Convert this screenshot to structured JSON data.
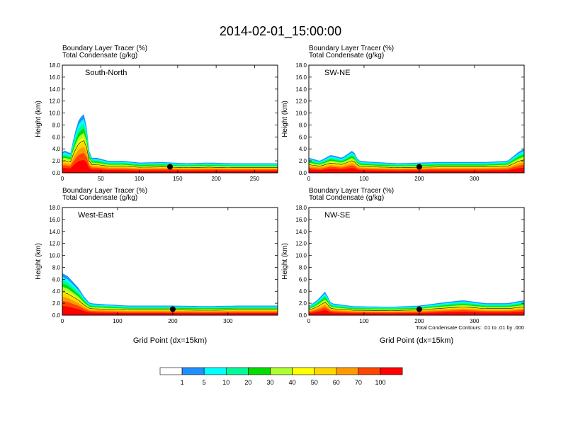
{
  "main_title": "2014-02-01_15:00:00",
  "chart_data": [
    {
      "type": "heatmap",
      "panel": "top-left",
      "title": "South-North",
      "subtitle_line1": "Boundary Layer Tracer   (%)",
      "subtitle_line2": "Total Condensate   (g/kg)",
      "xlabel": "",
      "ylabel": "Height (km)",
      "xlim": [
        0,
        280
      ],
      "ylim": [
        0,
        18
      ],
      "xticks": [
        0,
        50,
        100,
        150,
        200,
        250
      ],
      "xtick_labels": [
        "0",
        "50",
        "100",
        "150",
        "200",
        "250"
      ],
      "yticks": [
        0,
        2,
        4,
        6,
        8,
        10,
        12,
        14,
        16,
        18
      ],
      "ytick_labels": [
        "0.0",
        "2.0",
        "4.0",
        "6.0",
        "8.0",
        "10.0",
        "12.0",
        "14.0",
        "16.0",
        "18.0"
      ],
      "marker": {
        "x": 140,
        "y": 1.0
      },
      "bl_top_km": [
        [
          0,
          3.5
        ],
        [
          5,
          3.8
        ],
        [
          10,
          3.0
        ],
        [
          15,
          6.0
        ],
        [
          20,
          8.5
        ],
        [
          25,
          9.5
        ],
        [
          30,
          10.0
        ],
        [
          34,
          4.0
        ],
        [
          38,
          2.5
        ],
        [
          45,
          2.5
        ],
        [
          60,
          2.0
        ],
        [
          80,
          2.0
        ],
        [
          100,
          1.7
        ],
        [
          130,
          1.8
        ],
        [
          160,
          1.6
        ],
        [
          190,
          1.7
        ],
        [
          220,
          1.6
        ],
        [
          250,
          1.6
        ],
        [
          280,
          1.6
        ]
      ]
    },
    {
      "type": "heatmap",
      "panel": "top-right",
      "title": "SW-NE",
      "subtitle_line1": "Boundary Layer Tracer   (%)",
      "subtitle_line2": "Total Condensate   (g/kg)",
      "xlabel": "",
      "ylabel": "Height (km)",
      "xlim": [
        0,
        390
      ],
      "ylim": [
        0,
        18
      ],
      "xticks": [
        0,
        100,
        200,
        300
      ],
      "xtick_labels": [
        "0",
        "100",
        "200",
        "300"
      ],
      "yticks": [
        0,
        2,
        4,
        6,
        8,
        10,
        12,
        14,
        16,
        18
      ],
      "ytick_labels": [
        "0.0",
        "2.0",
        "4.0",
        "6.0",
        "8.0",
        "10.0",
        "12.0",
        "14.0",
        "16.0",
        "18.0"
      ],
      "marker": {
        "x": 200,
        "y": 1.0
      },
      "bl_top_km": [
        [
          0,
          2.5
        ],
        [
          20,
          2.0
        ],
        [
          40,
          3.0
        ],
        [
          60,
          2.5
        ],
        [
          80,
          3.8
        ],
        [
          90,
          2.0
        ],
        [
          120,
          1.8
        ],
        [
          160,
          1.6
        ],
        [
          200,
          1.7
        ],
        [
          240,
          1.8
        ],
        [
          280,
          1.8
        ],
        [
          320,
          1.8
        ],
        [
          360,
          2.0
        ],
        [
          380,
          3.5
        ],
        [
          390,
          4.0
        ]
      ]
    },
    {
      "type": "heatmap",
      "panel": "bottom-left",
      "title": "West-East",
      "subtitle_line1": "Boundary Layer Tracer   (%)",
      "subtitle_line2": "Total Condensate   (g/kg)",
      "xlabel": "Grid Point (dx=15km)",
      "ylabel": "Height (km)",
      "xlim": [
        0,
        390
      ],
      "ylim": [
        0,
        18
      ],
      "xticks": [
        0,
        100,
        200,
        300
      ],
      "xtick_labels": [
        "0",
        "100",
        "200",
        "300"
      ],
      "yticks": [
        0,
        2,
        4,
        6,
        8,
        10,
        12,
        14,
        16,
        18
      ],
      "ytick_labels": [
        "0.0",
        "2.0",
        "4.0",
        "6.0",
        "8.0",
        "10.0",
        "12.0",
        "14.0",
        "16.0",
        "18.0"
      ],
      "marker": {
        "x": 200,
        "y": 1.0
      },
      "bl_top_km": [
        [
          0,
          7.0
        ],
        [
          10,
          6.5
        ],
        [
          20,
          5.5
        ],
        [
          30,
          4.5
        ],
        [
          40,
          3.0
        ],
        [
          50,
          2.0
        ],
        [
          80,
          1.8
        ],
        [
          120,
          1.6
        ],
        [
          200,
          1.6
        ],
        [
          260,
          1.5
        ],
        [
          320,
          1.6
        ],
        [
          390,
          1.6
        ]
      ]
    },
    {
      "type": "heatmap",
      "panel": "bottom-right",
      "title": "NW-SE",
      "subtitle_line1": "Boundary Layer Tracer   (%)",
      "subtitle_line2": "Total Condensate   (g/kg)",
      "xlabel": "Grid Point (dx=15km)",
      "ylabel": "Height (km)",
      "xlim": [
        0,
        390
      ],
      "ylim": [
        0,
        18
      ],
      "xticks": [
        0,
        100,
        200,
        300
      ],
      "xtick_labels": [
        "0",
        "100",
        "200",
        "300"
      ],
      "yticks": [
        0,
        2,
        4,
        6,
        8,
        10,
        12,
        14,
        16,
        18
      ],
      "ytick_labels": [
        "0.0",
        "2.0",
        "4.0",
        "6.0",
        "8.0",
        "10.0",
        "12.0",
        "14.0",
        "16.0",
        "18.0"
      ],
      "marker": {
        "x": 200,
        "y": 1.0
      },
      "bl_top_km": [
        [
          0,
          1.5
        ],
        [
          15,
          2.5
        ],
        [
          30,
          4.0
        ],
        [
          40,
          2.0
        ],
        [
          80,
          1.5
        ],
        [
          150,
          1.4
        ],
        [
          200,
          1.6
        ],
        [
          250,
          2.2
        ],
        [
          280,
          2.5
        ],
        [
          320,
          2.0
        ],
        [
          360,
          2.0
        ],
        [
          390,
          2.5
        ]
      ],
      "footnote": "Total Condensate Contours: .01 to .01 by .000"
    }
  ],
  "colorbar": {
    "labels": [
      "1",
      "5",
      "10",
      "20",
      "30",
      "40",
      "50",
      "60",
      "70",
      "100"
    ],
    "colors": [
      "#ffffff",
      "#1e90ff",
      "#00ffff",
      "#00fa9a",
      "#00dd00",
      "#adff2f",
      "#ffff00",
      "#ffd700",
      "#ff9900",
      "#ff4500",
      "#ff0000"
    ]
  }
}
